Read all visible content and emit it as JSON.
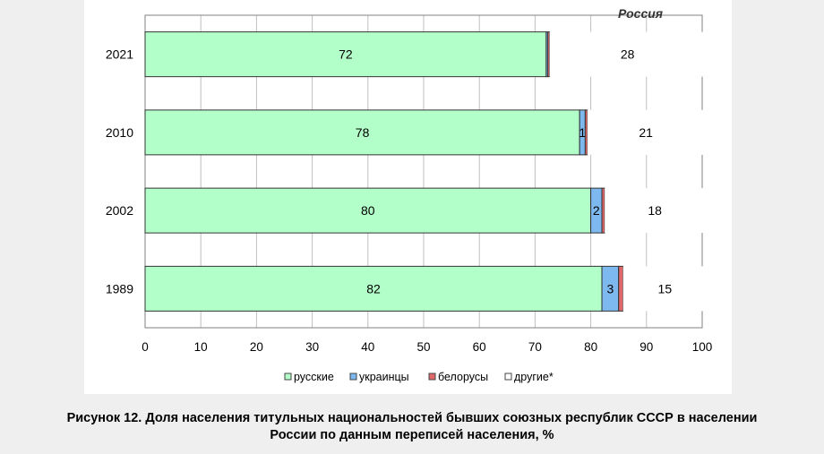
{
  "chart_data": {
    "type": "bar",
    "orientation": "horizontal",
    "stacked": true,
    "title": "Россия",
    "categories": [
      "2021",
      "2010",
      "2002",
      "1989"
    ],
    "series": [
      {
        "name": "русские",
        "values": [
          72,
          78,
          80,
          82
        ],
        "labels": [
          "72",
          "78",
          "80",
          "82"
        ],
        "color": "#b3ffc9"
      },
      {
        "name": "украинцы",
        "values": [
          0.3,
          1,
          2,
          3
        ],
        "labels": [
          "",
          "1",
          "2",
          "3"
        ],
        "color": "#7db8ef"
      },
      {
        "name": "белорусы",
        "values": [
          0.3,
          0.4,
          0.5,
          0.8
        ],
        "labels": [
          "",
          "",
          "",
          ""
        ],
        "color": "#e06868"
      },
      {
        "name": "другие*",
        "values": [
          28,
          21,
          18,
          15
        ],
        "labels": [
          "28",
          "21",
          "18",
          "15"
        ],
        "color": "#ffffff"
      }
    ],
    "xlim": [
      0,
      100
    ],
    "xticks": [
      "0",
      "10",
      "20",
      "30",
      "40",
      "50",
      "60",
      "70",
      "80",
      "90",
      "100"
    ],
    "grid": true,
    "legend": "bottom"
  },
  "caption": {
    "line1": "Рисунок 12. Доля населения титульных национальностей бывших союзных республик СССР в населении",
    "line2": "России по данным переписей населения, %"
  }
}
